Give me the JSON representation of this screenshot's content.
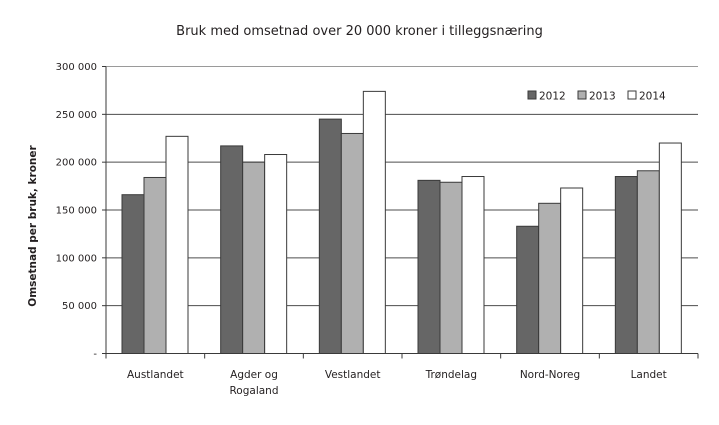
{
  "chart_data": {
    "type": "bar",
    "title": "Bruk med omsetnad over 20 000 kroner i tilleggsnæring",
    "xlabel": "",
    "ylabel": "Omsetnad per bruk, kroner",
    "ylim": [
      0,
      300000
    ],
    "yticks": [
      0,
      50000,
      100000,
      150000,
      200000,
      250000,
      300000
    ],
    "ytick_labels": [
      "-",
      "50 000",
      "100 000",
      "150 000",
      "200 000",
      "250 000",
      "300 000"
    ],
    "grid": true,
    "legend_position": "top-right-inside",
    "categories": [
      "Austlandet",
      "Agder og Rogaland",
      "Vestlandet",
      "Trøndelag",
      "Nord-Noreg",
      "Landet"
    ],
    "category_label_lines": [
      [
        "Austlandet"
      ],
      [
        "Agder og",
        "Rogaland"
      ],
      [
        "Vestlandet"
      ],
      [
        "Trøndelag"
      ],
      [
        "Nord-Noreg"
      ],
      [
        "Landet"
      ]
    ],
    "series": [
      {
        "name": "2012",
        "color": "#666666",
        "values": [
          166000,
          217000,
          245000,
          181000,
          133000,
          185000
        ]
      },
      {
        "name": "2013",
        "color": "#b0b0b0",
        "values": [
          184000,
          200000,
          230000,
          179000,
          157000,
          191000
        ]
      },
      {
        "name": "2014",
        "color": "#ffffff",
        "values": [
          227000,
          208000,
          274000,
          185000,
          173000,
          220000
        ]
      }
    ]
  },
  "colors": {
    "bar_border": "#3a3a3a",
    "grid": "#4d4d4d",
    "axis": "#3a3a3a"
  }
}
